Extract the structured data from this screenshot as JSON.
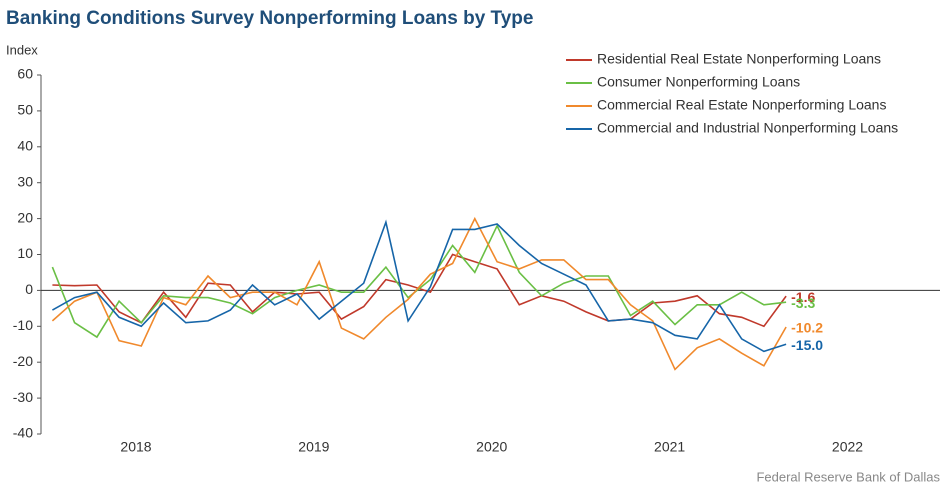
{
  "chart_data": {
    "type": "line",
    "title": "Banking Conditions Survey Nonperforming Loans by Type",
    "y_label": "Index",
    "source": "Federal Reserve Bank of Dallas",
    "x": [
      2018.03,
      2018.155,
      2018.28,
      2018.405,
      2018.53,
      2018.655,
      2018.78,
      2018.905,
      2019.03,
      2019.155,
      2019.28,
      2019.405,
      2019.53,
      2019.655,
      2019.78,
      2019.905,
      2020.03,
      2020.155,
      2020.28,
      2020.405,
      2020.53,
      2020.655,
      2020.78,
      2020.905,
      2021.03,
      2021.155,
      2021.28,
      2021.405,
      2021.53,
      2021.655,
      2021.78,
      2021.905,
      2022.03,
      2022.155
    ],
    "xlim": [
      2017.966,
      2023.02
    ],
    "xticks": [
      {
        "value": 2018.5,
        "label": "2018"
      },
      {
        "value": 2019.5,
        "label": "2019"
      },
      {
        "value": 2020.5,
        "label": "2020"
      },
      {
        "value": 2021.5,
        "label": "2021"
      },
      {
        "value": 2022.5,
        "label": "2022"
      }
    ],
    "ylim": [
      -40,
      60
    ],
    "yticks": [
      -40,
      -30,
      -20,
      -10,
      0,
      10,
      20,
      30,
      40,
      50,
      60
    ],
    "legend": "top-right",
    "series": [
      {
        "name": "Residential Real Estate Nonperforming Loans",
        "color": "#c0392b",
        "values": [
          1.5,
          1.3,
          1.5,
          -6,
          -9,
          -0.5,
          -7.5,
          2,
          1.5,
          -6,
          -0.5,
          -1,
          -0.5,
          -8,
          -4.5,
          3,
          1.5,
          -0.5,
          10,
          8,
          6,
          -4,
          -1.5,
          -3,
          -6,
          -8.5,
          -8,
          -3.5,
          -3,
          -1.5,
          -6.5,
          -7.5,
          -10,
          -1.6
        ],
        "value_labels": [
          null,
          null,
          null,
          null,
          null,
          null,
          null,
          null,
          null,
          null,
          null,
          null,
          null,
          null,
          null,
          null,
          null,
          null,
          null,
          null,
          null,
          null,
          null,
          null,
          null,
          null,
          null,
          null,
          null,
          null,
          null,
          null,
          null,
          "-1.6"
        ]
      },
      {
        "name": "Consumer Nonperforming Loans",
        "color": "#6abf45",
        "values": [
          6.5,
          -9,
          -13,
          -3,
          -9,
          -1.5,
          -2,
          -2,
          -3.5,
          -6.5,
          -2,
          0,
          1.5,
          -0.5,
          -0.5,
          6.5,
          -2,
          3,
          12.5,
          5,
          18,
          5,
          -1.5,
          2,
          4,
          4,
          -7,
          -3,
          -9.5,
          -4,
          -4,
          -0.5,
          -4,
          -3.3
        ],
        "value_labels": [
          null,
          null,
          null,
          null,
          null,
          null,
          null,
          null,
          null,
          null,
          null,
          null,
          null,
          null,
          null,
          null,
          null,
          null,
          null,
          null,
          null,
          null,
          null,
          null,
          null,
          null,
          null,
          null,
          null,
          null,
          null,
          null,
          null,
          "-3.3"
        ]
      },
      {
        "name": "Commercial Real Estate Nonperforming Loans",
        "color": "#f0892c",
        "values": [
          -8.5,
          -3,
          -0.5,
          -14,
          -15.5,
          -2,
          -4,
          4,
          -2,
          -0.5,
          -0.5,
          -4,
          8,
          -10.5,
          -13.5,
          -7.5,
          -2.5,
          4.5,
          7.5,
          20,
          8,
          6,
          8.5,
          8.5,
          3,
          3,
          -4,
          -8.5,
          -22,
          -16,
          -13.5,
          -17.5,
          -21,
          -10.2
        ],
        "value_labels": [
          null,
          null,
          null,
          null,
          null,
          null,
          null,
          null,
          null,
          null,
          null,
          null,
          null,
          null,
          null,
          null,
          null,
          null,
          null,
          null,
          null,
          null,
          null,
          null,
          null,
          null,
          null,
          null,
          null,
          null,
          null,
          null,
          null,
          "-10.2"
        ]
      },
      {
        "name": "Commercial and Industrial Nonperforming Loans",
        "color": "#1665a8",
        "values": [
          -5.5,
          -2,
          -0.5,
          -7.5,
          -10,
          -3.5,
          -9,
          -8.5,
          -5.5,
          1.5,
          -4,
          -1,
          -8,
          -3,
          2,
          19,
          -8.5,
          1,
          17,
          17,
          18.5,
          12.5,
          7.5,
          4.5,
          1.5,
          -8.5,
          -8,
          -9,
          -12.5,
          -13.5,
          -4,
          -13.5,
          -17,
          -15
        ],
        "value_labels": [
          null,
          null,
          null,
          null,
          null,
          null,
          null,
          null,
          null,
          null,
          null,
          null,
          null,
          null,
          null,
          null,
          null,
          null,
          null,
          null,
          null,
          null,
          null,
          null,
          null,
          null,
          null,
          null,
          null,
          null,
          null,
          null,
          null,
          "-15.0"
        ]
      }
    ]
  }
}
